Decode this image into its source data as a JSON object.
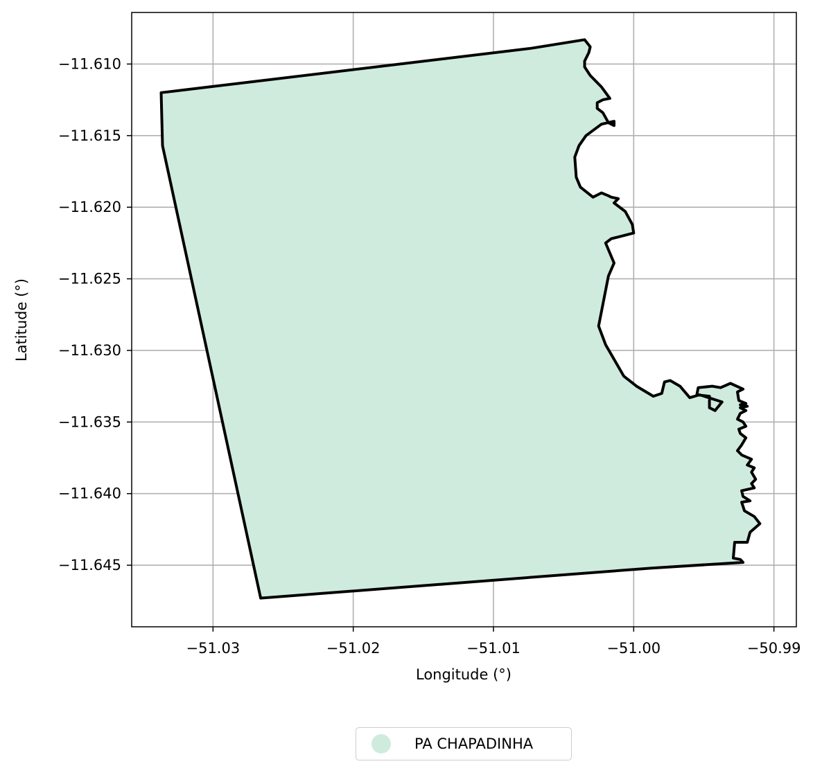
{
  "chart_data": {
    "type": "map",
    "title": "",
    "xlabel": "Longitude (°)",
    "ylabel": "Latitude (°)",
    "xlim": [
      -51.0358,
      -50.9884
    ],
    "ylim": [
      -11.6493,
      -11.6064
    ],
    "grid": true,
    "x_ticks": [
      -51.03,
      -51.02,
      -51.01,
      -51.0,
      -50.99
    ],
    "x_tick_labels": [
      "−51.03",
      "−51.02",
      "−51.01",
      "−51.00",
      "−50.99"
    ],
    "y_ticks": [
      -11.61,
      -11.615,
      -11.62,
      -11.625,
      -11.63,
      -11.635,
      -11.64,
      -11.645
    ],
    "y_tick_labels": [
      "−11.610",
      "−11.615",
      "−11.620",
      "−11.625",
      "−11.630",
      "−11.635",
      "−11.640",
      "−11.645"
    ],
    "legend": {
      "position": "bottom-center",
      "label": "PA CHAPADINHA"
    },
    "polygon": {
      "name": "PA CHAPADINHA",
      "fill": "#cfebde",
      "edge": "#000000",
      "coordinates": [
        [
          -51.0337,
          -11.612
        ],
        [
          -51.0336,
          -11.6157
        ],
        [
          -51.0266,
          -11.6473
        ],
        [
          -50.9987,
          -11.6452
        ],
        [
          -50.9922,
          -11.6448
        ],
        [
          -50.9924,
          -11.6446
        ],
        [
          -50.9929,
          -11.6445
        ],
        [
          -50.9928,
          -11.6434
        ],
        [
          -50.9919,
          -11.6434
        ],
        [
          -50.9917,
          -11.6427
        ],
        [
          -50.991,
          -11.6421
        ],
        [
          -50.9914,
          -11.6416
        ],
        [
          -50.9921,
          -11.6412
        ],
        [
          -50.9923,
          -11.6406
        ],
        [
          -50.9917,
          -11.6405
        ],
        [
          -50.9922,
          -11.6402
        ],
        [
          -50.9923,
          -11.6398
        ],
        [
          -50.9914,
          -11.6396
        ],
        [
          -50.9916,
          -11.6393
        ],
        [
          -50.9913,
          -11.639
        ],
        [
          -50.9916,
          -11.6385
        ],
        [
          -50.9914,
          -11.6382
        ],
        [
          -50.9919,
          -11.638
        ],
        [
          -50.9916,
          -11.6376
        ],
        [
          -50.9923,
          -11.6373
        ],
        [
          -50.9926,
          -11.637
        ],
        [
          -50.9923,
          -11.6366
        ],
        [
          -50.992,
          -11.6361
        ],
        [
          -50.9924,
          -11.6358
        ],
        [
          -50.9925,
          -11.6355
        ],
        [
          -50.992,
          -11.6353
        ],
        [
          -50.9922,
          -11.635
        ],
        [
          -50.9926,
          -11.6348
        ],
        [
          -50.9924,
          -11.6344
        ],
        [
          -50.992,
          -11.6342
        ],
        [
          -50.9924,
          -11.634
        ],
        [
          -50.9919,
          -11.6339
        ],
        [
          -50.9924,
          -11.6338
        ],
        [
          -50.992,
          -11.6337
        ],
        [
          -50.9925,
          -11.6335
        ],
        [
          -50.9926,
          -11.6329
        ],
        [
          -50.9922,
          -11.6327
        ],
        [
          -50.9931,
          -11.6323
        ],
        [
          -50.9938,
          -11.6326
        ],
        [
          -50.9944,
          -11.6325
        ],
        [
          -50.9954,
          -11.6326
        ],
        [
          -50.9955,
          -11.6331
        ],
        [
          -50.9946,
          -11.6332
        ],
        [
          -50.9946,
          -11.634
        ],
        [
          -50.9942,
          -11.6342
        ],
        [
          -50.9937,
          -11.6336
        ],
        [
          -50.9953,
          -11.6331
        ],
        [
          -50.996,
          -11.6333
        ],
        [
          -50.9967,
          -11.6325
        ],
        [
          -50.9974,
          -11.6321
        ],
        [
          -50.9978,
          -11.6322
        ],
        [
          -50.998,
          -11.633
        ],
        [
          -50.9986,
          -11.6332
        ],
        [
          -50.9998,
          -11.6325
        ],
        [
          -51.0007,
          -11.6318
        ],
        [
          -51.002,
          -11.6296
        ],
        [
          -51.0025,
          -11.6283
        ],
        [
          -51.0018,
          -11.6248
        ],
        [
          -51.0014,
          -11.6239
        ],
        [
          -51.002,
          -11.6225
        ],
        [
          -51.0016,
          -11.6222
        ],
        [
          -51.0,
          -11.6218
        ],
        [
          -51.0001,
          -11.6212
        ],
        [
          -51.0006,
          -11.6203
        ],
        [
          -51.0014,
          -11.6197
        ],
        [
          -51.0011,
          -11.6194
        ],
        [
          -51.0016,
          -11.6193
        ],
        [
          -51.0018,
          -11.6192
        ],
        [
          -51.0023,
          -11.619
        ],
        [
          -51.0029,
          -11.6193
        ],
        [
          -51.0038,
          -11.6186
        ],
        [
          -51.0041,
          -11.6179
        ],
        [
          -51.0042,
          -11.6165
        ],
        [
          -51.0039,
          -11.6157
        ],
        [
          -51.0034,
          -11.615
        ],
        [
          -51.0023,
          -11.6142
        ],
        [
          -51.0014,
          -11.614
        ],
        [
          -51.0014,
          -11.6143
        ],
        [
          -51.0018,
          -11.6141
        ],
        [
          -51.0022,
          -11.6134
        ],
        [
          -51.0026,
          -11.6131
        ],
        [
          -51.0026,
          -11.6127
        ],
        [
          -51.0022,
          -11.6125
        ],
        [
          -51.0017,
          -11.6124
        ],
        [
          -51.0023,
          -11.6116
        ],
        [
          -51.0031,
          -11.6108
        ],
        [
          -51.0035,
          -11.6102
        ],
        [
          -51.0035,
          -11.6098
        ],
        [
          -51.0032,
          -11.6092
        ],
        [
          -51.0031,
          -11.6088
        ],
        [
          -51.0035,
          -11.6083
        ],
        [
          -51.0073,
          -11.6089
        ]
      ]
    }
  }
}
